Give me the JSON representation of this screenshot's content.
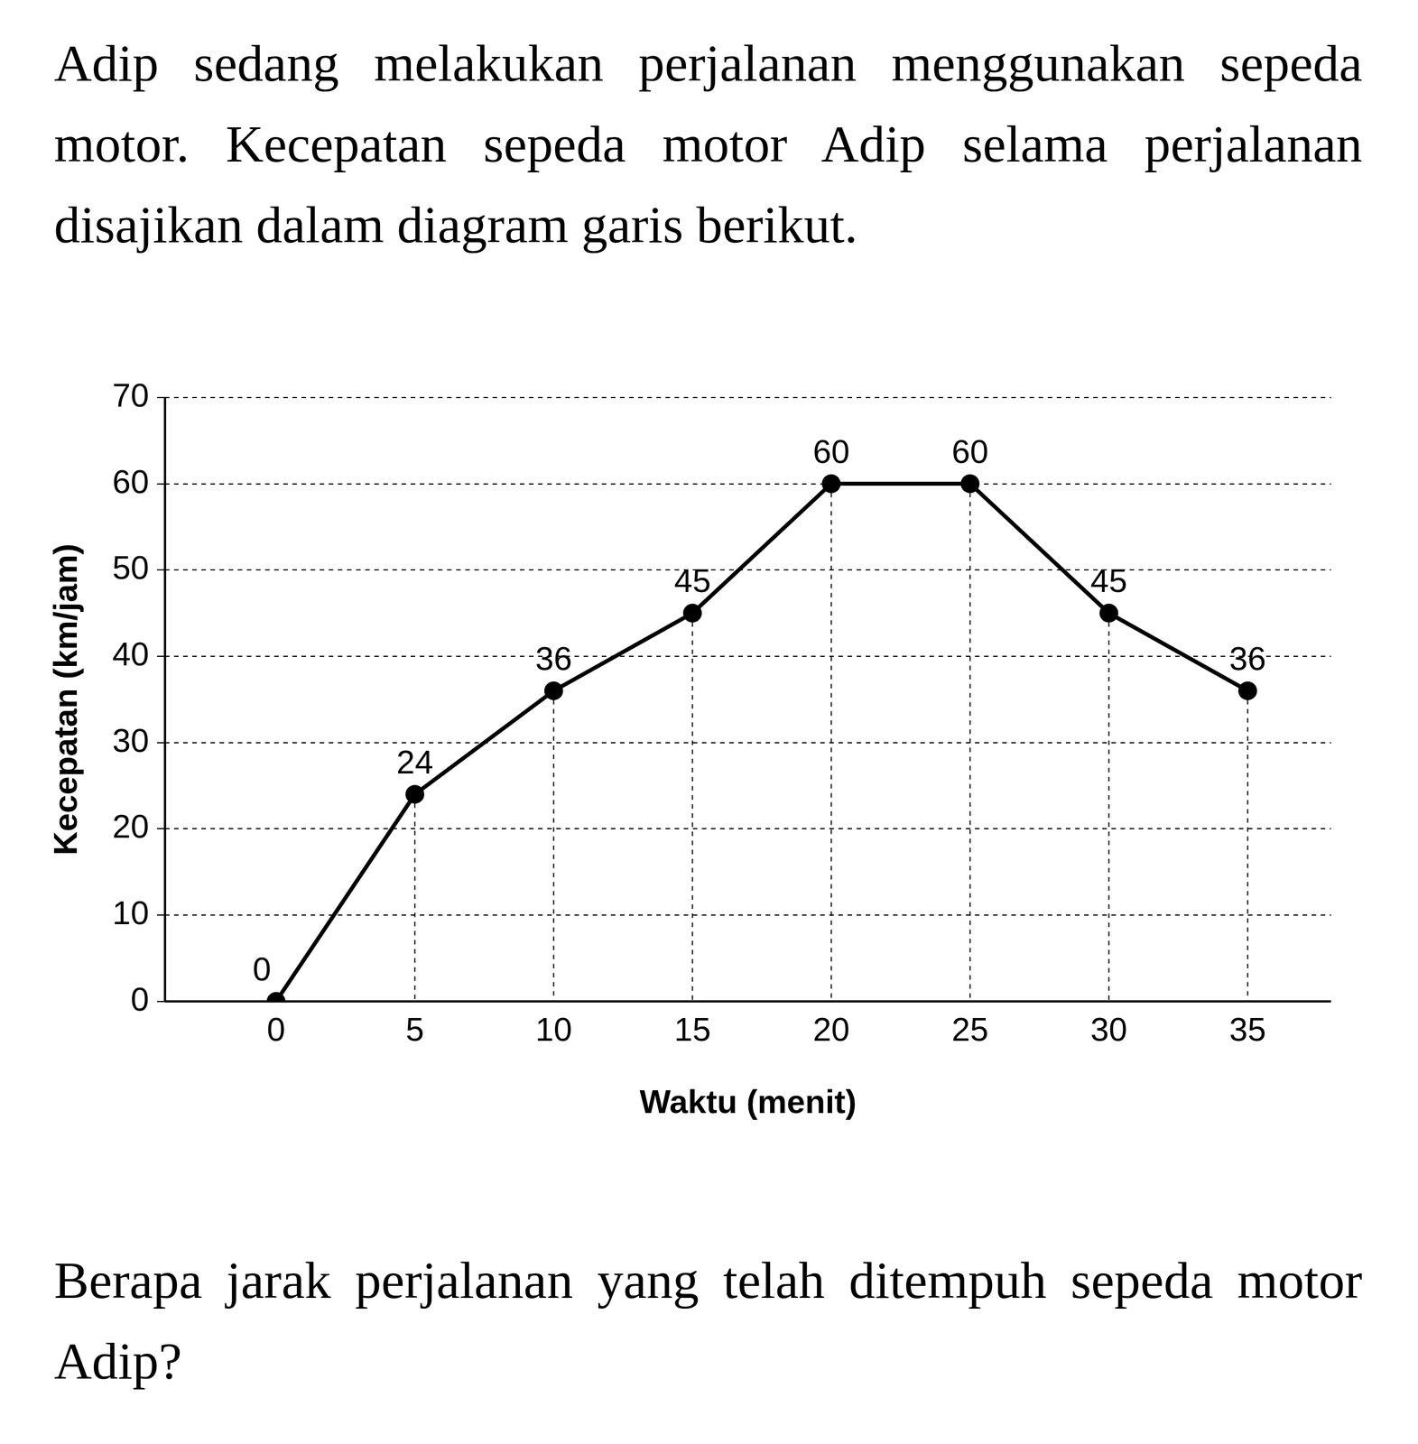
{
  "problem": {
    "intro": "Adip sedang melakukan perjalanan menggunakan sepeda motor. Kecepatan sepeda motor Adip selama perjalanan disajikan dalam diagram garis berikut.",
    "question": "Berapa jarak perjalanan yang telah ditempuh sepeda motor Adip?"
  },
  "chart_data": {
    "type": "line",
    "x": [
      0,
      5,
      10,
      15,
      20,
      25,
      30,
      35
    ],
    "values": [
      0,
      24,
      36,
      45,
      60,
      60,
      45,
      36
    ],
    "color": "#000000",
    "xlabel": "Waktu (menit)",
    "ylabel": "Kecepatan (km/jam)",
    "xlim": [
      -4,
      38
    ],
    "xticks": [
      0,
      5,
      10,
      15,
      20,
      25,
      30,
      35
    ],
    "ylim": [
      0,
      70
    ],
    "yticks": [
      0,
      10,
      20,
      30,
      40,
      50,
      60,
      70
    ],
    "grid": true,
    "data_labels": true,
    "marker": "circle",
    "line_style": "solid"
  }
}
